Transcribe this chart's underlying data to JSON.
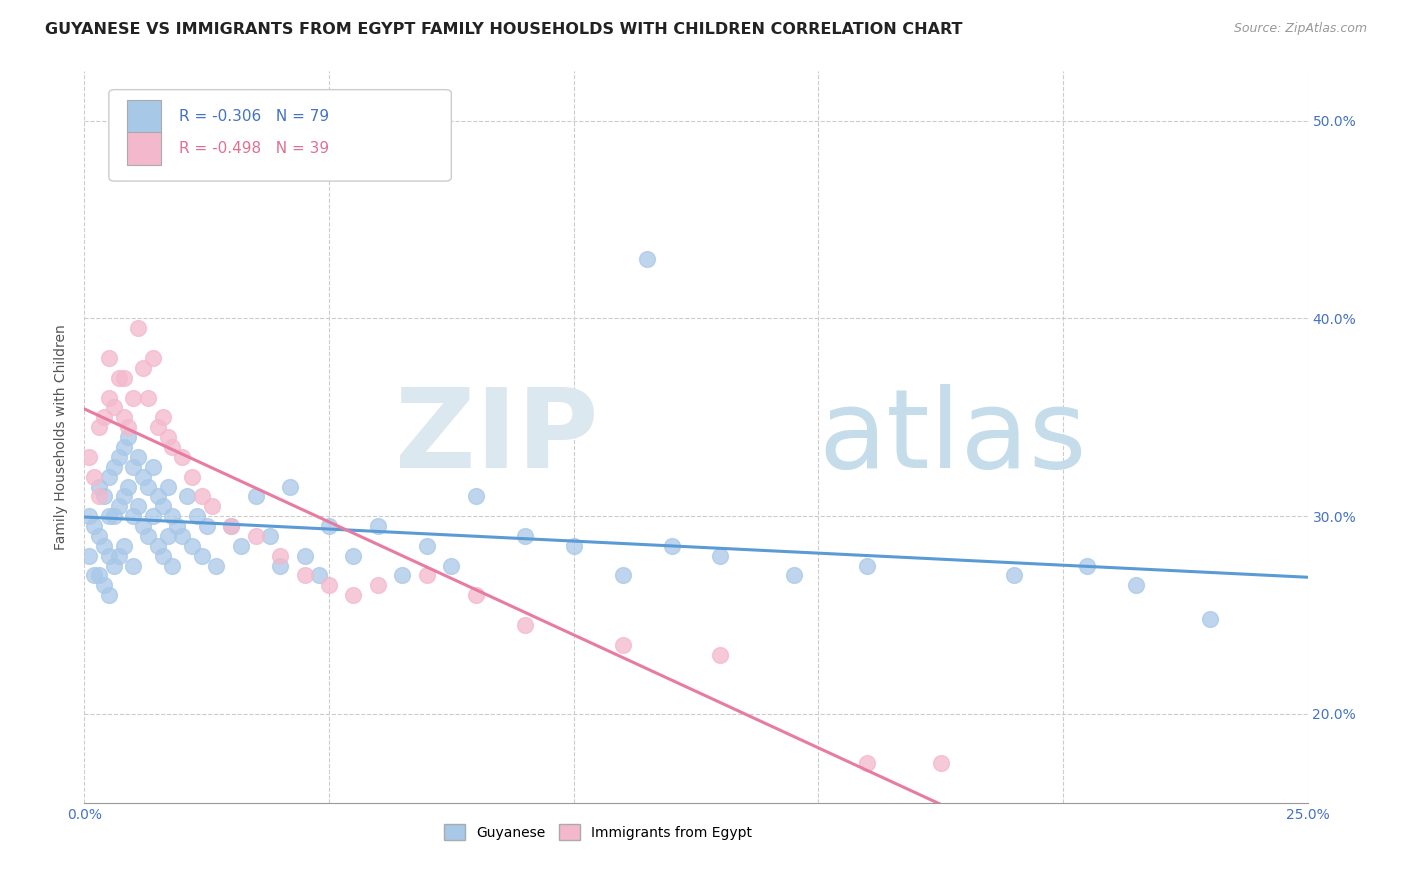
{
  "title": "GUYANESE VS IMMIGRANTS FROM EGYPT FAMILY HOUSEHOLDS WITH CHILDREN CORRELATION CHART",
  "source": "Source: ZipAtlas.com",
  "ylabel": "Family Households with Children",
  "xlim": [
    0.0,
    0.25
  ],
  "ylim": [
    0.155,
    0.525
  ],
  "x_ticks": [
    0.0,
    0.05,
    0.1,
    0.15,
    0.2,
    0.25
  ],
  "x_tick_labels": [
    "0.0%",
    "",
    "",
    "",
    "",
    "25.0%"
  ],
  "y_ticks": [
    0.2,
    0.3,
    0.4,
    0.5
  ],
  "y_tick_labels": [
    "20.0%",
    "30.0%",
    "40.0%",
    "50.0%"
  ],
  "r_guyanese": -0.306,
  "n_guyanese": 79,
  "r_egypt": -0.498,
  "n_egypt": 39,
  "color_guyanese": "#a8c8e8",
  "color_egypt": "#f4b8cc",
  "line_color_guyanese": "#5b9bd5",
  "line_color_egypt": "#e87ca0",
  "title_fontsize": 11.5,
  "guyanese_x": [
    0.001,
    0.001,
    0.002,
    0.002,
    0.003,
    0.003,
    0.003,
    0.004,
    0.004,
    0.004,
    0.005,
    0.005,
    0.005,
    0.005,
    0.006,
    0.006,
    0.006,
    0.007,
    0.007,
    0.007,
    0.008,
    0.008,
    0.008,
    0.009,
    0.009,
    0.01,
    0.01,
    0.01,
    0.011,
    0.011,
    0.012,
    0.012,
    0.013,
    0.013,
    0.014,
    0.014,
    0.015,
    0.015,
    0.016,
    0.016,
    0.017,
    0.017,
    0.018,
    0.018,
    0.019,
    0.02,
    0.021,
    0.022,
    0.023,
    0.024,
    0.025,
    0.027,
    0.03,
    0.032,
    0.035,
    0.038,
    0.04,
    0.042,
    0.045,
    0.048,
    0.05,
    0.055,
    0.06,
    0.065,
    0.07,
    0.075,
    0.08,
    0.09,
    0.1,
    0.11,
    0.115,
    0.12,
    0.13,
    0.145,
    0.16,
    0.19,
    0.205,
    0.215,
    0.23
  ],
  "guyanese_y": [
    0.3,
    0.28,
    0.295,
    0.27,
    0.315,
    0.29,
    0.27,
    0.31,
    0.285,
    0.265,
    0.32,
    0.3,
    0.28,
    0.26,
    0.325,
    0.3,
    0.275,
    0.33,
    0.305,
    0.28,
    0.335,
    0.31,
    0.285,
    0.34,
    0.315,
    0.325,
    0.3,
    0.275,
    0.33,
    0.305,
    0.32,
    0.295,
    0.315,
    0.29,
    0.325,
    0.3,
    0.31,
    0.285,
    0.305,
    0.28,
    0.315,
    0.29,
    0.3,
    0.275,
    0.295,
    0.29,
    0.31,
    0.285,
    0.3,
    0.28,
    0.295,
    0.275,
    0.295,
    0.285,
    0.31,
    0.29,
    0.275,
    0.315,
    0.28,
    0.27,
    0.295,
    0.28,
    0.295,
    0.27,
    0.285,
    0.275,
    0.31,
    0.29,
    0.285,
    0.27,
    0.43,
    0.285,
    0.28,
    0.27,
    0.275,
    0.27,
    0.275,
    0.265,
    0.248
  ],
  "egypt_x": [
    0.001,
    0.002,
    0.003,
    0.003,
    0.004,
    0.005,
    0.005,
    0.006,
    0.007,
    0.008,
    0.008,
    0.009,
    0.01,
    0.011,
    0.012,
    0.013,
    0.014,
    0.015,
    0.016,
    0.017,
    0.018,
    0.02,
    0.022,
    0.024,
    0.026,
    0.03,
    0.035,
    0.04,
    0.045,
    0.05,
    0.055,
    0.06,
    0.07,
    0.08,
    0.09,
    0.11,
    0.13,
    0.16,
    0.175
  ],
  "egypt_y": [
    0.33,
    0.32,
    0.345,
    0.31,
    0.35,
    0.36,
    0.38,
    0.355,
    0.37,
    0.35,
    0.37,
    0.345,
    0.36,
    0.395,
    0.375,
    0.36,
    0.38,
    0.345,
    0.35,
    0.34,
    0.335,
    0.33,
    0.32,
    0.31,
    0.305,
    0.295,
    0.29,
    0.28,
    0.27,
    0.265,
    0.26,
    0.265,
    0.27,
    0.26,
    0.245,
    0.235,
    0.23,
    0.175,
    0.175
  ]
}
